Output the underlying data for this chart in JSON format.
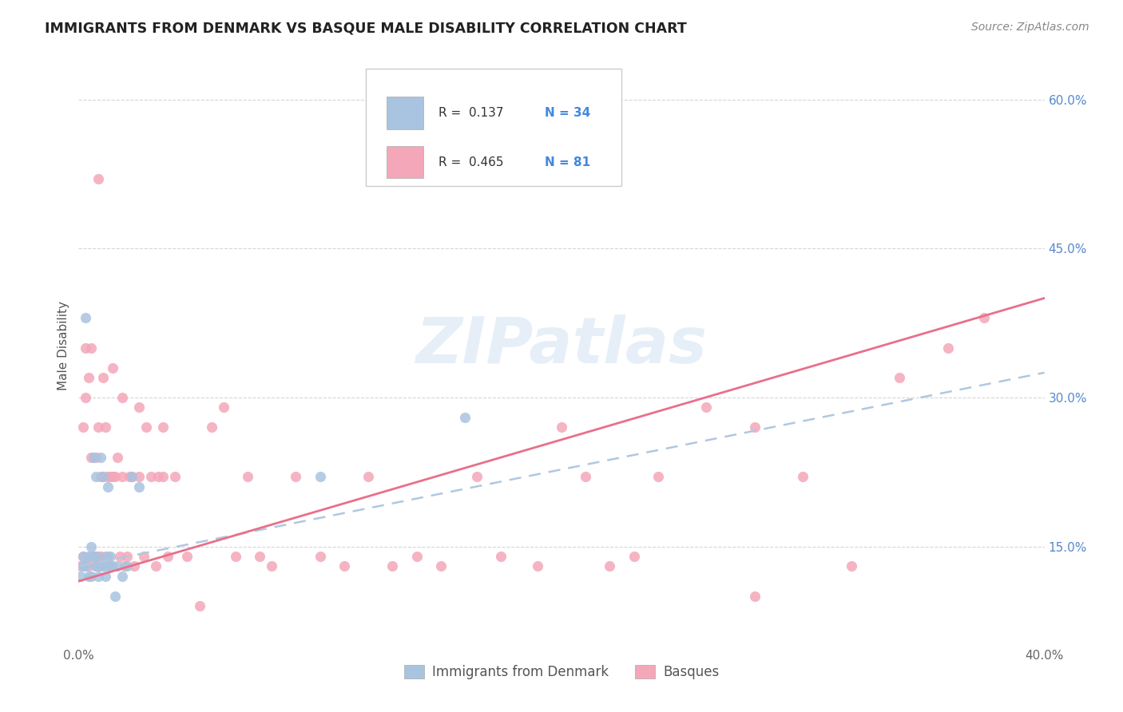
{
  "title": "IMMIGRANTS FROM DENMARK VS BASQUE MALE DISABILITY CORRELATION CHART",
  "source": "Source: ZipAtlas.com",
  "ylabel": "Male Disability",
  "x_min": 0.0,
  "x_max": 0.4,
  "y_min": 0.055,
  "y_max": 0.65,
  "x_ticks": [
    0.0,
    0.1,
    0.2,
    0.3,
    0.4
  ],
  "x_tick_labels": [
    "0.0%",
    "",
    "",
    "",
    "40.0%"
  ],
  "y_ticks_right": [
    0.15,
    0.3,
    0.45,
    0.6
  ],
  "y_tick_labels_right": [
    "15.0%",
    "30.0%",
    "45.0%",
    "60.0%"
  ],
  "watermark": "ZIPatlas",
  "color_denmark": "#a8c4e0",
  "color_basque": "#f4a7b9",
  "line_color_denmark": "#b0c8e0",
  "line_color_basque": "#e8708a",
  "denmark_line_start_y": 0.13,
  "denmark_line_end_y": 0.325,
  "basque_line_start_y": 0.115,
  "basque_line_end_y": 0.4,
  "denmark_scatter_x": [
    0.001,
    0.002,
    0.002,
    0.003,
    0.003,
    0.004,
    0.004,
    0.005,
    0.005,
    0.006,
    0.006,
    0.007,
    0.007,
    0.007,
    0.008,
    0.008,
    0.009,
    0.009,
    0.01,
    0.01,
    0.011,
    0.011,
    0.012,
    0.012,
    0.013,
    0.014,
    0.015,
    0.016,
    0.018,
    0.02,
    0.022,
    0.025,
    0.1,
    0.16
  ],
  "denmark_scatter_y": [
    0.12,
    0.14,
    0.13,
    0.13,
    0.38,
    0.14,
    0.12,
    0.15,
    0.12,
    0.14,
    0.24,
    0.14,
    0.22,
    0.13,
    0.13,
    0.12,
    0.24,
    0.13,
    0.22,
    0.13,
    0.14,
    0.12,
    0.13,
    0.21,
    0.14,
    0.13,
    0.1,
    0.13,
    0.12,
    0.13,
    0.22,
    0.21,
    0.22,
    0.28
  ],
  "basque_scatter_x": [
    0.001,
    0.002,
    0.002,
    0.003,
    0.003,
    0.004,
    0.004,
    0.005,
    0.005,
    0.006,
    0.007,
    0.007,
    0.008,
    0.008,
    0.009,
    0.009,
    0.01,
    0.01,
    0.011,
    0.012,
    0.012,
    0.013,
    0.013,
    0.014,
    0.015,
    0.016,
    0.017,
    0.018,
    0.019,
    0.02,
    0.021,
    0.022,
    0.023,
    0.025,
    0.027,
    0.028,
    0.03,
    0.032,
    0.033,
    0.035,
    0.037,
    0.04,
    0.045,
    0.05,
    0.055,
    0.06,
    0.065,
    0.07,
    0.075,
    0.08,
    0.09,
    0.1,
    0.11,
    0.12,
    0.13,
    0.14,
    0.15,
    0.165,
    0.175,
    0.19,
    0.2,
    0.21,
    0.22,
    0.23,
    0.24,
    0.26,
    0.28,
    0.3,
    0.32,
    0.34,
    0.36,
    0.375,
    0.003,
    0.005,
    0.008,
    0.01,
    0.014,
    0.018,
    0.025,
    0.035,
    0.28
  ],
  "basque_scatter_y": [
    0.13,
    0.27,
    0.14,
    0.3,
    0.13,
    0.32,
    0.13,
    0.14,
    0.24,
    0.14,
    0.13,
    0.24,
    0.14,
    0.27,
    0.14,
    0.22,
    0.13,
    0.22,
    0.27,
    0.14,
    0.22,
    0.13,
    0.22,
    0.22,
    0.22,
    0.24,
    0.14,
    0.22,
    0.13,
    0.14,
    0.22,
    0.22,
    0.13,
    0.22,
    0.14,
    0.27,
    0.22,
    0.13,
    0.22,
    0.22,
    0.14,
    0.22,
    0.14,
    0.09,
    0.27,
    0.29,
    0.14,
    0.22,
    0.14,
    0.13,
    0.22,
    0.14,
    0.13,
    0.22,
    0.13,
    0.14,
    0.13,
    0.22,
    0.14,
    0.13,
    0.27,
    0.22,
    0.13,
    0.14,
    0.22,
    0.29,
    0.27,
    0.22,
    0.13,
    0.32,
    0.35,
    0.38,
    0.35,
    0.35,
    0.52,
    0.32,
    0.33,
    0.3,
    0.29,
    0.27,
    0.1
  ],
  "background_color": "#ffffff",
  "grid_color": "#cccccc"
}
